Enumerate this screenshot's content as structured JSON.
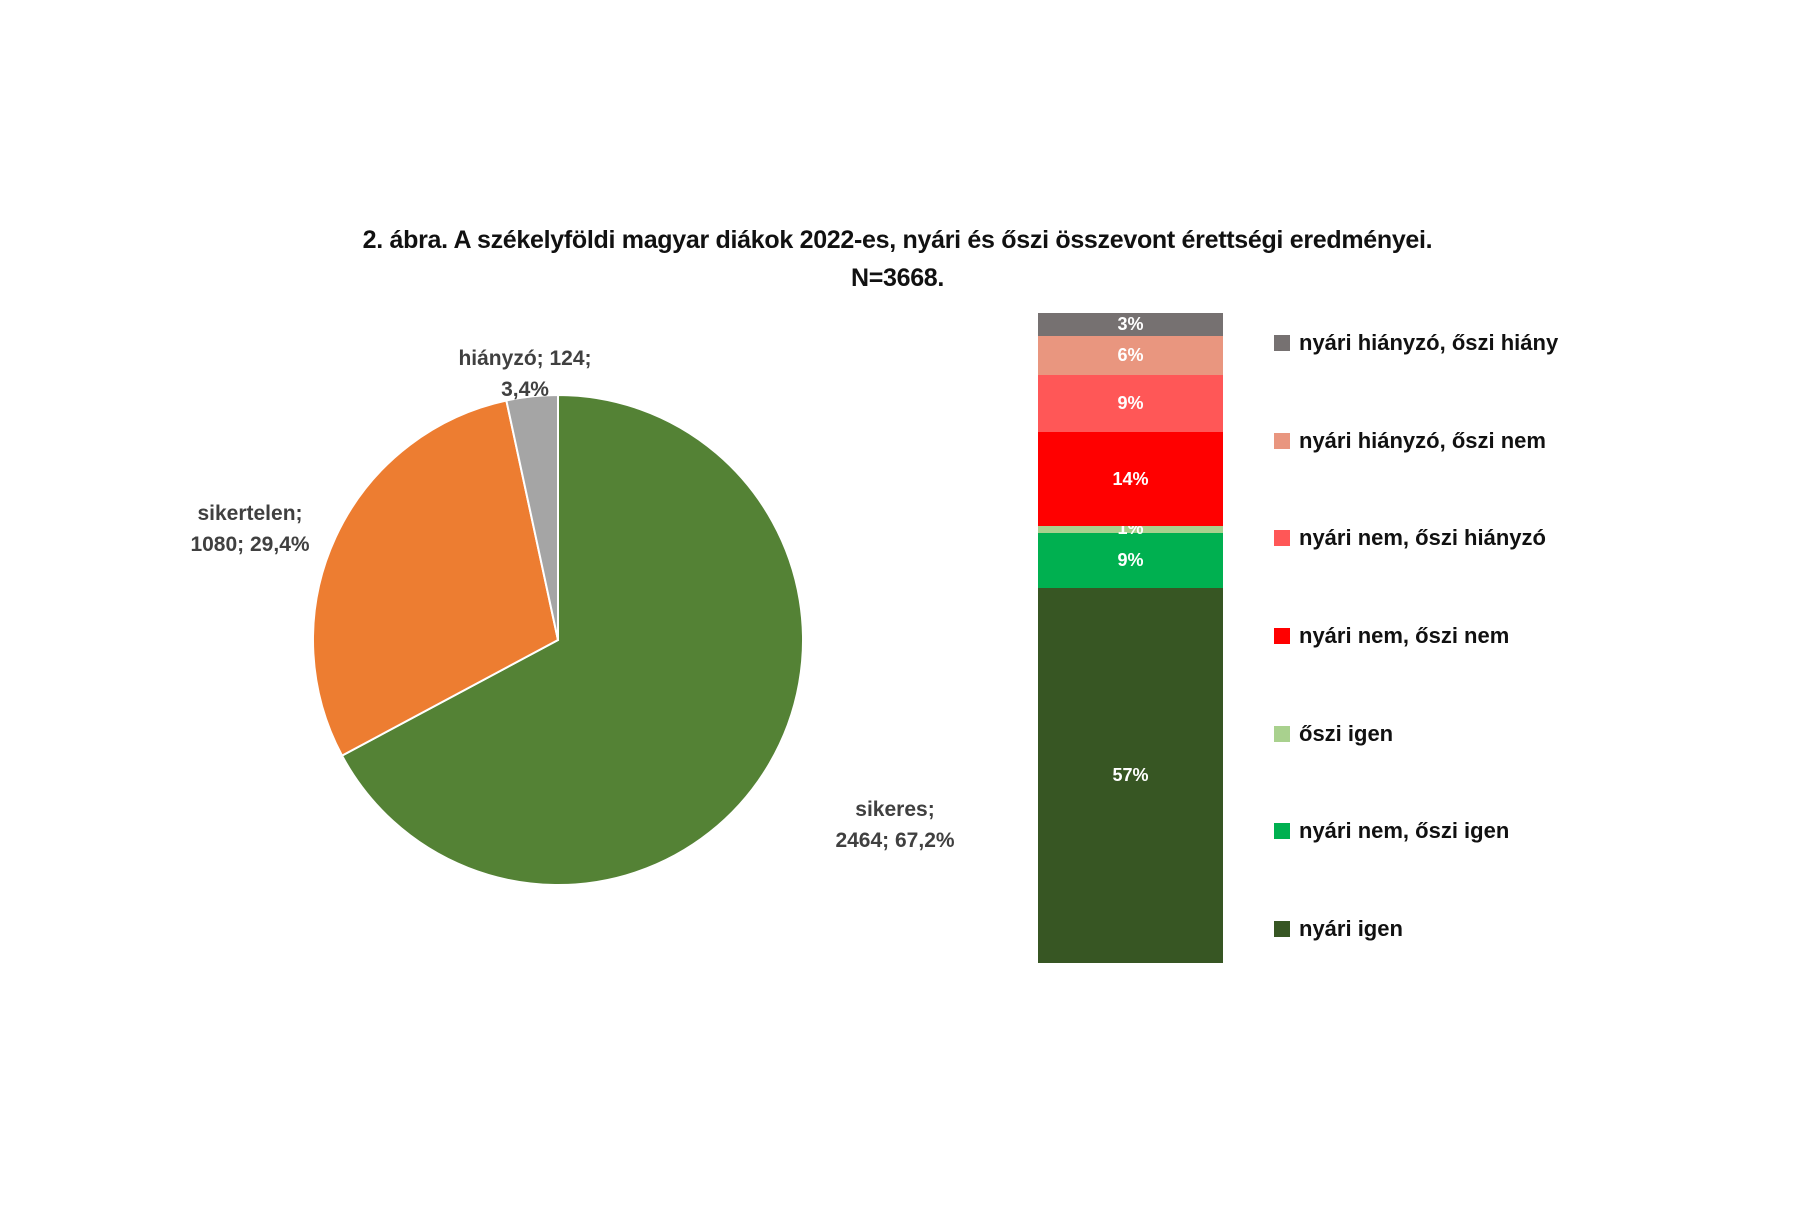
{
  "title": {
    "line1": "2. ábra. A székelyföldi magyar diákok 2022-es,  nyári és őszi összevont érettségi  eredményei.",
    "line2": "N=3668."
  },
  "chart_data": [
    {
      "type": "pie",
      "title": "2. ábra. A székelyföldi magyar diákok 2022-es, nyári és őszi összevont érettségi eredményei. N=3668.",
      "total": 3668,
      "categories": [
        "sikeres",
        "sikertelen",
        "hiányzó"
      ],
      "values": [
        2464,
        1080,
        124
      ],
      "percentages": [
        67.2,
        29.4,
        3.4
      ],
      "colors": [
        "#548235",
        "#ED7D31",
        "#A5A5A5"
      ],
      "labels": [
        {
          "line1": "sikeres;",
          "line2": "2464;  67,2%"
        },
        {
          "line1": "sikertelen;",
          "line2": "1080;  29,4%"
        },
        {
          "line1": "hiányzó; 124;",
          "line2": "3,4%"
        }
      ]
    },
    {
      "type": "bar",
      "stacked": true,
      "orientation": "vertical",
      "unit": "%",
      "series_bottom_to_top": [
        {
          "name": "nyári igen",
          "value": 57,
          "label": "57%",
          "color": "#375623"
        },
        {
          "name": "nyári nem, őszi igen",
          "value": 9,
          "label": "9%",
          "color": "#00B050"
        },
        {
          "name": "őszi igen",
          "value": 1,
          "label": "1%",
          "color": "#A9D18E"
        },
        {
          "name": "nyári nem, őszi nem",
          "value": 14,
          "label": "14%",
          "color": "#FF0000"
        },
        {
          "name": "nyári nem, őszi hiányzó",
          "value": 9,
          "label": "9%",
          "color": "#FF5757"
        },
        {
          "name": "nyári hiányzó, őszi nem",
          "value": 6,
          "label": "6%",
          "color": "#E9967F"
        },
        {
          "name": "nyári hiányzó, őszi hiány",
          "value": 3,
          "label": "3%",
          "color": "#767171"
        }
      ],
      "legend_position": "right",
      "grid": false
    }
  ],
  "legend": [
    {
      "label": "nyári hiányzó, őszi hiány",
      "color": "#767171"
    },
    {
      "label": "nyári hiányzó, őszi nem",
      "color": "#E9967F"
    },
    {
      "label": "nyári nem, őszi hiányzó",
      "color": "#FF5757"
    },
    {
      "label": "nyári nem, őszi nem",
      "color": "#FF0000"
    },
    {
      "label": "őszi igen",
      "color": "#A9D18E"
    },
    {
      "label": "nyári nem, őszi igen",
      "color": "#00B050"
    },
    {
      "label": "nyári igen",
      "color": "#375623"
    }
  ]
}
